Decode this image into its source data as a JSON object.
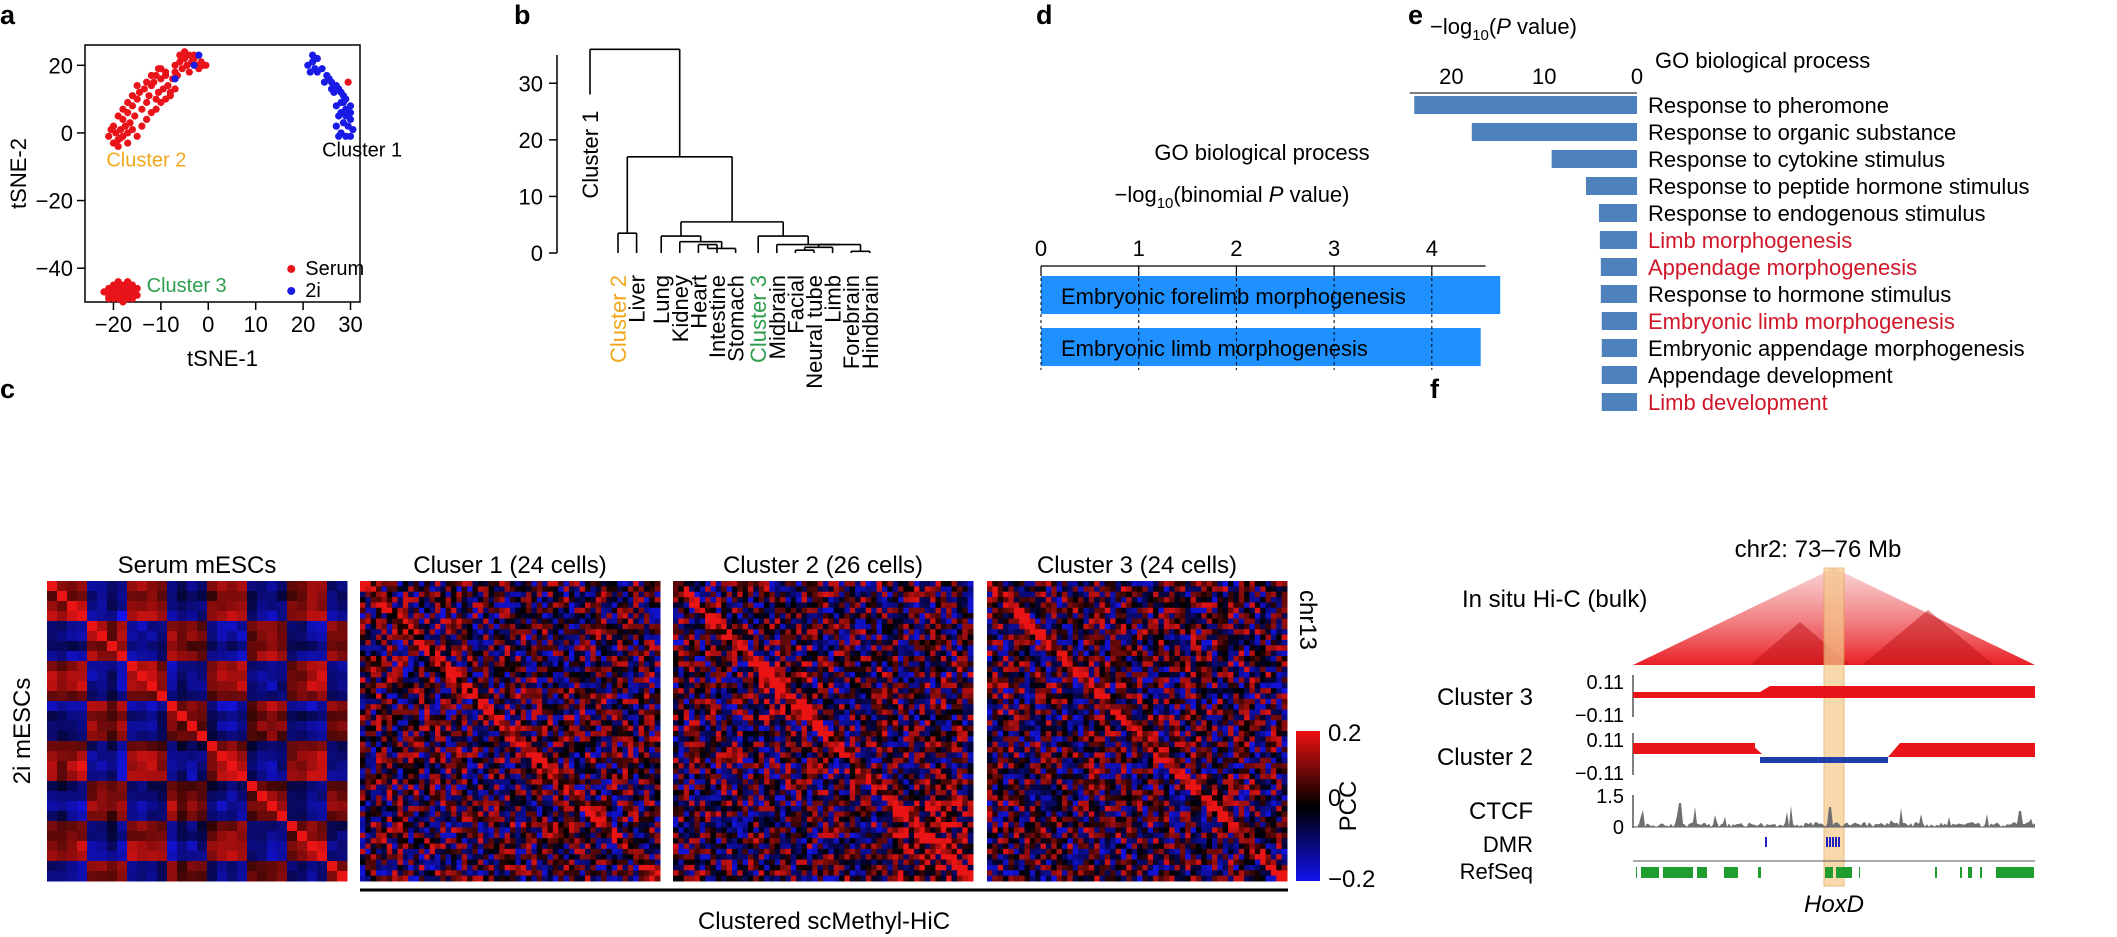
{
  "panels": {
    "a": "a",
    "b": "b",
    "c": "c",
    "d": "d",
    "e": "e",
    "f": "f"
  },
  "chart_data": [
    {
      "panel": "a",
      "type": "scatter",
      "xlabel": "tSNE-1",
      "ylabel": "tSNE-2",
      "xlim": [
        -26,
        32
      ],
      "ylim": [
        -50,
        26
      ],
      "xticks": [
        "−20",
        "−10",
        "0",
        "10",
        "20",
        "30"
      ],
      "xtick_values": [
        -20,
        -10,
        0,
        10,
        20,
        30
      ],
      "yticks": [
        "−40",
        "−20",
        "0",
        "20"
      ],
      "ytick_values": [
        -40,
        -20,
        0,
        20
      ],
      "legend": [
        {
          "name": "Serum",
          "color": "#e8141a"
        },
        {
          "name": "2i",
          "color": "#1a1ae6"
        }
      ],
      "legend_position": "bottom-right",
      "cluster_labels": [
        {
          "text": "Cluster 1",
          "color": "#000000",
          "x": 24,
          "y": -7
        },
        {
          "text": "Cluster 2",
          "color": "#f2a81d",
          "x": -21.5,
          "y": -10
        },
        {
          "text": "Cluster 3",
          "color": "#2e9e4c",
          "x": -13,
          "y": -47
        }
      ],
      "series": [
        {
          "name": "Serum",
          "color": "#e8141a",
          "points": [
            [
              -20,
              -3
            ],
            [
              -19.5,
              0
            ],
            [
              -18.5,
              1
            ],
            [
              -18,
              -1
            ],
            [
              -19,
              -2
            ],
            [
              -17.5,
              2
            ],
            [
              -17,
              0
            ],
            [
              -16.5,
              3
            ],
            [
              -16,
              1
            ],
            [
              -18,
              4
            ],
            [
              -17,
              6
            ],
            [
              -15.5,
              5
            ],
            [
              -16,
              8
            ],
            [
              -15,
              10
            ],
            [
              -14,
              7
            ],
            [
              -14.5,
              12
            ],
            [
              -13,
              9
            ],
            [
              -13.5,
              13
            ],
            [
              -12.5,
              11
            ],
            [
              -12,
              14
            ],
            [
              -11,
              10
            ],
            [
              -11.5,
              15
            ],
            [
              -10.5,
              12
            ],
            [
              -10,
              16
            ],
            [
              -9.5,
              13
            ],
            [
              -9,
              17
            ],
            [
              -8.5,
              14
            ],
            [
              -8,
              12
            ],
            [
              -7.5,
              16
            ],
            [
              -7,
              18
            ],
            [
              -7,
              20
            ],
            [
              -6.5,
              17
            ],
            [
              -6,
              21
            ],
            [
              -5.5,
              19
            ],
            [
              -5,
              22
            ],
            [
              -4.5,
              20
            ],
            [
              -4,
              18
            ],
            [
              -3.5,
              21
            ],
            [
              -3,
              23
            ],
            [
              -2.5,
              20
            ],
            [
              -2,
              19
            ],
            [
              -1.5,
              21
            ],
            [
              -1,
              20
            ],
            [
              -0.5,
              20
            ],
            [
              -6,
              23
            ],
            [
              -5,
              24
            ],
            [
              -4,
              23
            ],
            [
              -3,
              22
            ],
            [
              -9,
              18
            ],
            [
              -10,
              19
            ],
            [
              -12,
              17
            ],
            [
              -13,
              15
            ],
            [
              -15,
              14
            ],
            [
              -16,
              11
            ],
            [
              -17,
              9
            ],
            [
              -18,
              7
            ],
            [
              -19,
              5
            ],
            [
              -20,
              2
            ],
            [
              -21,
              -1
            ],
            [
              -19,
              -4
            ],
            [
              -17,
              -3
            ],
            [
              -15,
              -1
            ],
            [
              -14,
              2
            ],
            [
              -13,
              4
            ],
            [
              -12,
              6
            ],
            [
              -11,
              7
            ],
            [
              -10,
              9
            ],
            [
              -9,
              10
            ],
            [
              -8,
              11
            ],
            [
              -7,
              13
            ],
            [
              -20.5,
              1
            ],
            [
              -18.5,
              -1.5
            ],
            [
              -11,
              17
            ],
            [
              -10.5,
              19
            ],
            [
              29.5,
              15
            ],
            [
              22.5,
              22
            ],
            [
              -19,
              -46
            ],
            [
              -18,
              -47
            ],
            [
              -17,
              -46
            ],
            [
              -16,
              -48
            ],
            [
              -20,
              -47
            ],
            [
              -21,
              -48
            ],
            [
              -19,
              -49
            ],
            [
              -18,
              -50
            ],
            [
              -17,
              -49
            ],
            [
              -16,
              -47
            ],
            [
              -15,
              -48
            ],
            [
              -20,
              -45
            ],
            [
              -19,
              -44
            ],
            [
              -18,
              -45
            ],
            [
              -17,
              -44
            ],
            [
              -16,
              -45
            ],
            [
              -21,
              -46
            ],
            [
              -22,
              -47
            ],
            [
              -20,
              -49
            ],
            [
              -18,
              -48
            ],
            [
              -15,
              -46
            ],
            [
              -17,
              -48
            ],
            [
              -19,
              -48
            ],
            [
              -21,
              -49
            ],
            [
              -16,
              -49
            ]
          ]
        },
        {
          "name": "2i",
          "color": "#1a1ae6",
          "points": [
            [
              21,
              20
            ],
            [
              22,
              21
            ],
            [
              23,
              22
            ],
            [
              22.5,
              19
            ],
            [
              21.5,
              18
            ],
            [
              23,
              18
            ],
            [
              24,
              19
            ],
            [
              25,
              17
            ],
            [
              25.5,
              16
            ],
            [
              26,
              15
            ],
            [
              27,
              14
            ],
            [
              27.5,
              13
            ],
            [
              26.5,
              12
            ],
            [
              28,
              12
            ],
            [
              28.5,
              11
            ],
            [
              29,
              10
            ],
            [
              28,
              9
            ],
            [
              27,
              8
            ],
            [
              29,
              7
            ],
            [
              30,
              8
            ],
            [
              28,
              6
            ],
            [
              27.5,
              5
            ],
            [
              29,
              5
            ],
            [
              30,
              4
            ],
            [
              28.5,
              3
            ],
            [
              27,
              2
            ],
            [
              29.5,
              2
            ],
            [
              30.5,
              1
            ],
            [
              28,
              0
            ],
            [
              29,
              -1
            ],
            [
              30,
              -1
            ],
            [
              27.5,
              -1
            ],
            [
              28.5,
              9
            ],
            [
              30,
              6
            ],
            [
              26,
              13
            ],
            [
              24.5,
              15
            ],
            [
              -7,
              16
            ],
            [
              -3,
              20
            ],
            [
              -2,
              23
            ],
            [
              22,
              23
            ]
          ]
        }
      ]
    },
    {
      "panel": "b",
      "type": "dendrogram",
      "ylabel": "Cluster 1",
      "yticks": [
        "0",
        "10",
        "20",
        "30"
      ],
      "ytick_values": [
        0,
        10,
        20,
        30
      ],
      "ylim": [
        0,
        38
      ],
      "leaves": [
        {
          "label": "Cluster 2",
          "color": "#f2a81d"
        },
        {
          "label": "Liver",
          "color": "#000000"
        },
        {
          "label": "Lung",
          "color": "#000000"
        },
        {
          "label": "Kidney",
          "color": "#000000"
        },
        {
          "label": "Heart",
          "color": "#000000"
        },
        {
          "label": "Intestine",
          "color": "#000000"
        },
        {
          "label": "Stomach",
          "color": "#000000"
        },
        {
          "label": "Cluster 3",
          "color": "#2e9e4c"
        },
        {
          "label": "Midbrain",
          "color": "#000000"
        },
        {
          "label": "Facial",
          "color": "#000000"
        },
        {
          "label": "Neural tube",
          "color": "#000000"
        },
        {
          "label": "Limb",
          "color": "#000000"
        },
        {
          "label": "Forebrain",
          "color": "#000000"
        },
        {
          "label": "Hindbrain",
          "color": "#000000"
        }
      ],
      "merges": [
        {
          "left": "leaf:0",
          "right": "leaf:1",
          "height": 3.5
        },
        {
          "left": "leaf:9",
          "right": "leaf:10",
          "height": 0.5
        },
        {
          "left": "m1",
          "right": "leaf:11",
          "height": 1
        },
        {
          "left": "leaf:12",
          "right": "leaf:13",
          "height": 0.3
        },
        {
          "left": "m2",
          "right": "m3",
          "height": 1.5
        },
        {
          "left": "leaf:8",
          "right": "m4",
          "height": 1.5
        },
        {
          "left": "leaf:7",
          "right": "m5",
          "height": 3
        },
        {
          "left": "leaf:4",
          "right": "leaf:5",
          "height": 1.5
        },
        {
          "left": "m7",
          "right": "leaf:6",
          "height": 0.8
        },
        {
          "left": "leaf:3",
          "right": "m8",
          "height": 2
        },
        {
          "left": "leaf:2",
          "right": "m9",
          "height": 3
        },
        {
          "left": "m10",
          "right": "m6",
          "height": 5.5
        },
        {
          "left": "m0",
          "right": "m11",
          "height": 17
        },
        {
          "left": "leaf:root_top",
          "right": "",
          "height": 36
        }
      ]
    },
    {
      "panel": "d",
      "type": "bar",
      "orientation": "horizontal",
      "title": "GO biological process",
      "xlabel_prefix": "−log",
      "xlabel_sub": "10",
      "xlabel_suffix": "(binomial ",
      "xlabel_italic": "P",
      "xlabel_end": " value)",
      "xlim": [
        0,
        4.8
      ],
      "xticks": [
        "0",
        "1",
        "2",
        "3",
        "4"
      ],
      "xtick_values": [
        0,
        1,
        2,
        3,
        4
      ],
      "categories": [
        "Embryonic forelimb morphogenesis",
        "Embryonic limb morphogenesis"
      ],
      "values": [
        4.7,
        4.5
      ],
      "bar_color": "#1e90ff"
    },
    {
      "panel": "e",
      "type": "bar",
      "orientation": "horizontal-reversed",
      "title": "GO biological process",
      "xlabel_prefix": "−log",
      "xlabel_sub": "10",
      "xlabel_open": "(",
      "xlabel_italic": "P",
      "xlabel_end": " value)",
      "xlim": [
        0,
        25
      ],
      "xticks": [
        "20",
        "10",
        "0"
      ],
      "xtick_values": [
        20,
        10,
        0
      ],
      "categories": [
        {
          "label": "Response to pheromone",
          "color": "#000000"
        },
        {
          "label": "Response to organic substance",
          "color": "#000000"
        },
        {
          "label": "Response to cytokine stimulus",
          "color": "#000000"
        },
        {
          "label": "Response to peptide hormone stimulus",
          "color": "#000000"
        },
        {
          "label": "Response to endogenous stimulus",
          "color": "#000000"
        },
        {
          "label": "Limb morphogenesis",
          "color": "#d0172a"
        },
        {
          "label": "Appendage morphogenesis",
          "color": "#d0172a"
        },
        {
          "label": "Response to hormone stimulus",
          "color": "#000000"
        },
        {
          "label": "Embryonic limb morphogenesis",
          "color": "#d0172a"
        },
        {
          "label": "Embryonic appendage morphogenesis",
          "color": "#000000"
        },
        {
          "label": "Appendage development",
          "color": "#000000"
        },
        {
          "label": "Limb development",
          "color": "#d0172a"
        }
      ],
      "values": [
        24,
        17.8,
        9.2,
        5.5,
        4.1,
        4.0,
        3.9,
        3.9,
        3.8,
        3.8,
        3.8,
        3.8
      ],
      "bar_color": "#4f81bd"
    },
    {
      "panel": "c",
      "type": "heatmap",
      "titles": [
        "Serum mESCs",
        "Cluser 1 (24 cells)",
        "Cluster 2 (26 cells)",
        "Cluster 3 (24 cells)"
      ],
      "left_label": "2i mESCs",
      "right_label": "chr13",
      "bottom_label": "Clustered scMethyl-HiC",
      "colorbar_label": "PCC",
      "colorbar_ticks": [
        "0.2",
        "0",
        "−0.2"
      ],
      "colorbar_values": [
        0.2,
        0,
        -0.2
      ],
      "colorscale": [
        "#1111ee",
        "#000000",
        "#ee1111"
      ]
    },
    {
      "panel": "f",
      "type": "genome-tracks",
      "region": "chr2: 73–76 Mb",
      "hic_label": "In situ Hi-C (bulk)",
      "tracks": [
        {
          "name": "Cluster 3",
          "ymax": "0.11",
          "ymin": "−0.11"
        },
        {
          "name": "Cluster 2",
          "ymax": "0.11",
          "ymin": "−0.11"
        },
        {
          "name": "CTCF",
          "ymax": "1.5",
          "ymin": "0"
        },
        {
          "name": "DMR"
        },
        {
          "name": "RefSeq"
        }
      ],
      "gene_label": "HoxD",
      "highlight_color": "#f5c98a"
    }
  ]
}
